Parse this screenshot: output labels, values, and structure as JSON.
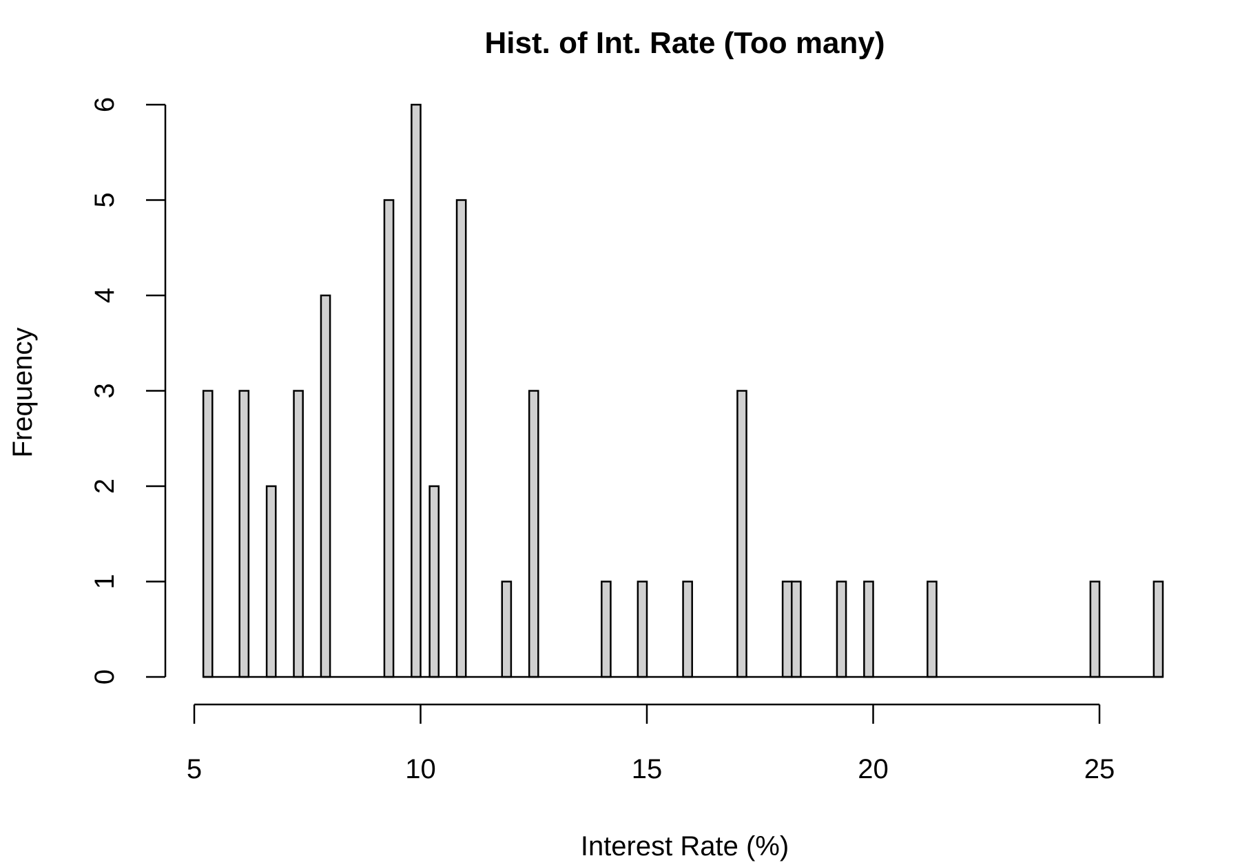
{
  "chart_data": {
    "type": "bar",
    "title": "Hist. of Int. Rate (Too many)",
    "xlabel": "Interest Rate (%)",
    "ylabel": "Frequency",
    "xlim": [
      5,
      26.5
    ],
    "ylim": [
      0,
      6
    ],
    "xticks": [
      5,
      10,
      15,
      20,
      25
    ],
    "yticks": [
      0,
      1,
      2,
      3,
      4,
      5,
      6
    ],
    "bin_width": 0.2,
    "bar_color": "#d0d0d0",
    "bins": [
      {
        "x": 5.3,
        "count": 3
      },
      {
        "x": 6.1,
        "count": 3
      },
      {
        "x": 6.7,
        "count": 2
      },
      {
        "x": 7.3,
        "count": 3
      },
      {
        "x": 7.9,
        "count": 4
      },
      {
        "x": 9.3,
        "count": 5
      },
      {
        "x": 9.9,
        "count": 6
      },
      {
        "x": 10.3,
        "count": 2
      },
      {
        "x": 10.9,
        "count": 5
      },
      {
        "x": 11.9,
        "count": 1
      },
      {
        "x": 12.5,
        "count": 3
      },
      {
        "x": 14.1,
        "count": 1
      },
      {
        "x": 14.9,
        "count": 1
      },
      {
        "x": 15.9,
        "count": 1
      },
      {
        "x": 17.1,
        "count": 3
      },
      {
        "x": 18.1,
        "count": 1
      },
      {
        "x": 18.3,
        "count": 1
      },
      {
        "x": 19.3,
        "count": 1
      },
      {
        "x": 19.9,
        "count": 1
      },
      {
        "x": 21.3,
        "count": 1
      },
      {
        "x": 24.9,
        "count": 1
      },
      {
        "x": 26.3,
        "count": 1
      }
    ]
  }
}
